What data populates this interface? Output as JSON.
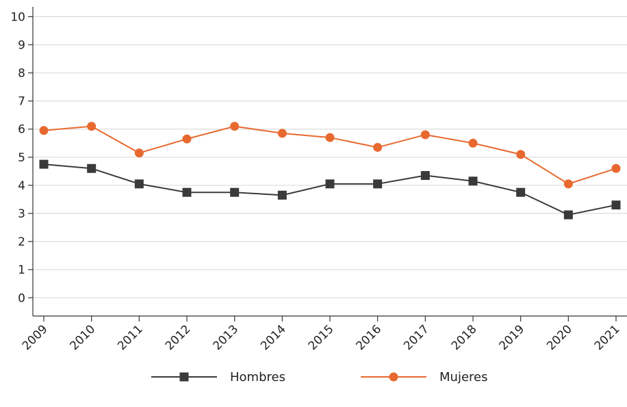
{
  "chart_data": {
    "type": "line",
    "x": [
      "2009",
      "2010",
      "2011",
      "2012",
      "2013",
      "2014",
      "2015",
      "2016",
      "2017",
      "2018",
      "2019",
      "2020",
      "2021"
    ],
    "yticks": [
      "0",
      "1",
      "2",
      "3",
      "4",
      "5",
      "6",
      "7",
      "8",
      "9",
      "10"
    ],
    "ylim": [
      -0.65,
      10.35
    ],
    "grid": true,
    "legend_position": "bottom",
    "series": [
      {
        "name": "Hombres",
        "color": "#3a3a3a",
        "marker": "square",
        "values": [
          4.75,
          4.6,
          4.05,
          3.75,
          3.75,
          3.65,
          4.05,
          4.05,
          4.35,
          4.15,
          3.75,
          2.95,
          3.3
        ]
      },
      {
        "name": "Mujeres",
        "color": "#e8692f",
        "marker": "circle",
        "values": [
          5.95,
          6.1,
          5.15,
          5.65,
          6.1,
          5.85,
          5.7,
          5.35,
          5.8,
          5.5,
          5.1,
          4.05,
          4.6
        ]
      }
    ]
  }
}
